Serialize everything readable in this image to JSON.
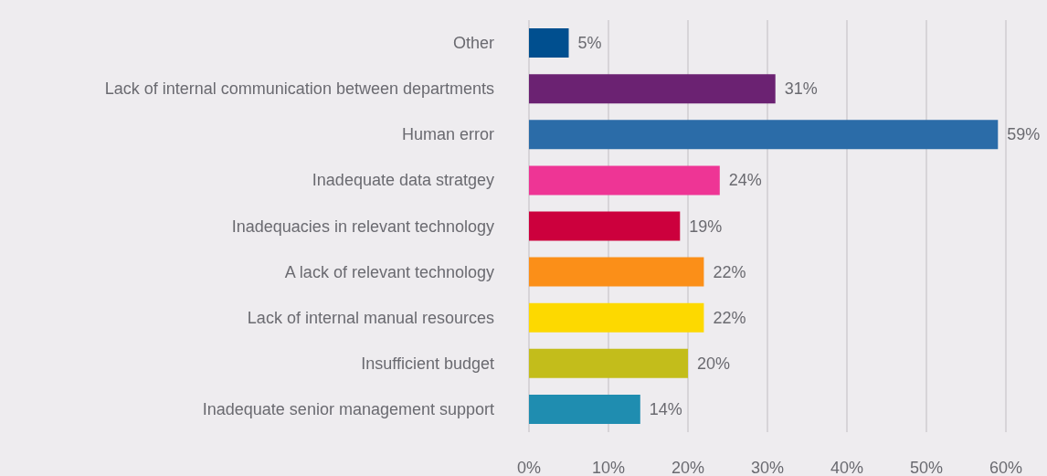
{
  "chart_data": {
    "type": "bar",
    "orientation": "horizontal",
    "categories": [
      "Other",
      "Lack of internal communication between departments",
      "Human error",
      "Inadequate data stratgey",
      "Inadequacies in relevant technology",
      "A lack of relevant technology",
      "Lack of internal manual resources",
      "Insufficient budget",
      "Inadequate senior management support"
    ],
    "values": [
      5,
      31,
      59,
      24,
      19,
      22,
      22,
      20,
      14
    ],
    "colors": [
      "#004f8f",
      "#6b2272",
      "#2b6ca8",
      "#ee3595",
      "#cc003d",
      "#fb8f18",
      "#fdd900",
      "#c3bd1b",
      "#1f8db0"
    ],
    "value_labels": [
      "5%",
      "31%",
      "59%",
      "24%",
      "19%",
      "22%",
      "22%",
      "20%",
      "14%"
    ],
    "xlim": [
      0,
      60
    ],
    "xticks": [
      {
        "value": 0,
        "label": "0%"
      },
      {
        "value": 10,
        "label": "10%"
      },
      {
        "value": 20,
        "label": "20%"
      },
      {
        "value": 30,
        "label": "30%"
      },
      {
        "value": 40,
        "label": "40%"
      },
      {
        "value": 50,
        "label": "50%"
      },
      {
        "value": 60,
        "label": "60%"
      }
    ],
    "grid": "x"
  }
}
